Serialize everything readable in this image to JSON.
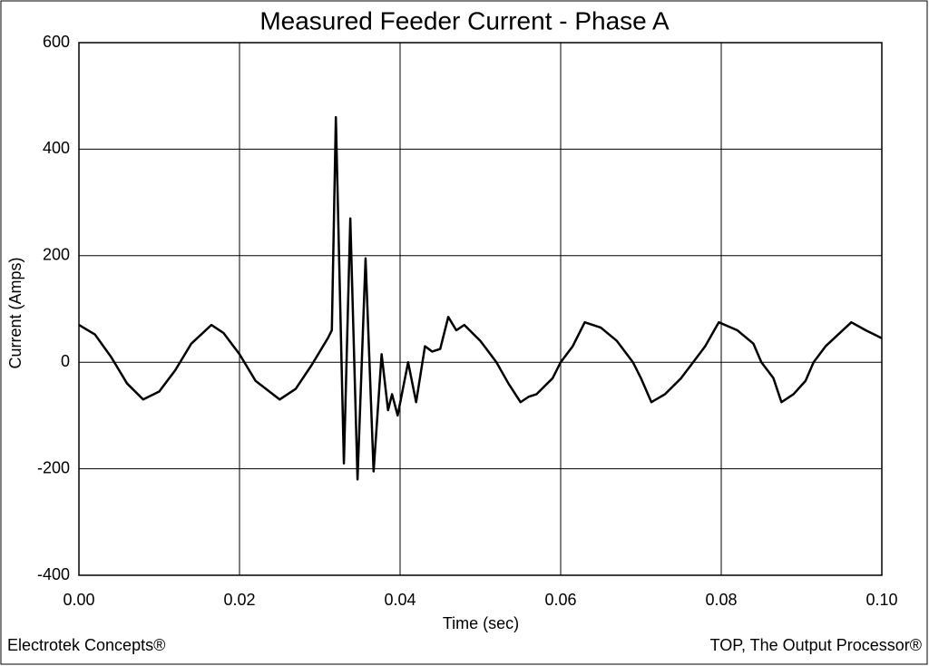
{
  "chart_data": {
    "type": "line",
    "title": "Measured Feeder Current - Phase A",
    "xlabel": "Time (sec)",
    "ylabel": "Current (Amps)",
    "footer_left": "Electrotek Concepts®",
    "footer_right": "TOP, The Output Processor®",
    "xlim": [
      0,
      0.1
    ],
    "ylim": [
      -400,
      600
    ],
    "xticks": [
      {
        "value": 0,
        "label": "0.00"
      },
      0.02,
      0.04,
      0.06,
      0.08,
      {
        "value": 0.1,
        "label": "0.10"
      }
    ],
    "yticks": [
      -400,
      -200,
      0,
      200,
      400,
      600
    ],
    "grid": true,
    "series": [
      {
        "color": "#000000",
        "x": [
          0,
          0.002,
          0.004,
          0.006,
          0.008,
          0.01,
          0.012,
          0.014,
          0.0165,
          0.018,
          0.02,
          0.022,
          0.025,
          0.027,
          0.029,
          0.031,
          0.0315,
          0.032,
          0.033,
          0.0338,
          0.0347,
          0.0357,
          0.0367,
          0.0377,
          0.0385,
          0.039,
          0.0397,
          0.041,
          0.042,
          0.0431,
          0.044,
          0.045,
          0.046,
          0.047,
          0.048,
          0.05,
          0.052,
          0.0535,
          0.055,
          0.056,
          0.057,
          0.059,
          0.06,
          0.0615,
          0.063,
          0.065,
          0.067,
          0.069,
          0.07,
          0.0713,
          0.073,
          0.075,
          0.0765,
          0.078,
          0.0797,
          0.082,
          0.084,
          0.085,
          0.0865,
          0.0875,
          0.089,
          0.0905,
          0.0915,
          0.093,
          0.0962,
          0.098,
          0.1
        ],
        "values": [
          70,
          52,
          10,
          -40,
          -70,
          -55,
          -15,
          35,
          70,
          55,
          15,
          -35,
          -70,
          -50,
          -5,
          45,
          60,
          460,
          -190,
          270,
          -220,
          195,
          -205,
          15,
          -90,
          -60,
          -100,
          0,
          -75,
          30,
          20,
          25,
          85,
          60,
          70,
          40,
          0,
          -40,
          -75,
          -65,
          -60,
          -30,
          0,
          30,
          75,
          65,
          40,
          0,
          -30,
          -75,
          -60,
          -30,
          0,
          30,
          75,
          60,
          35,
          0,
          -30,
          -75,
          -60,
          -35,
          0,
          30,
          75,
          60,
          45
        ]
      }
    ]
  }
}
